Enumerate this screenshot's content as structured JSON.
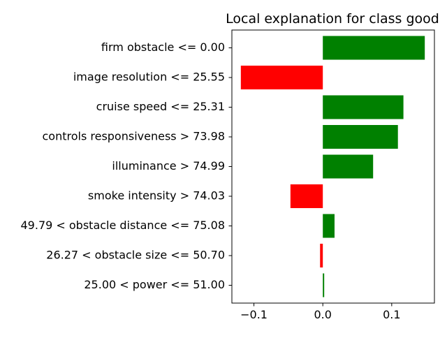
{
  "chart_data": {
    "type": "bar",
    "orientation": "horizontal",
    "title": "Local explanation for class good",
    "xlabel": "",
    "ylabel": "",
    "xlim": [
      -0.132,
      0.162
    ],
    "xticks": [
      -0.1,
      0.0,
      0.1
    ],
    "xtick_labels": [
      "−0.1",
      "0.0",
      "0.1"
    ],
    "grid": false,
    "legend": "none",
    "positive_color": "#008000",
    "negative_color": "#ff0000",
    "categories": [
      "firm obstacle <= 0.00",
      "image resolution <= 25.55",
      "cruise speed <= 25.31",
      "controls responsiveness > 73.98",
      "illuminance > 74.99",
      "smoke intensity > 74.03",
      "49.79 < obstacle distance <= 75.08",
      "26.27 < obstacle size <= 50.70",
      "25.00 < power <= 51.00"
    ],
    "values": [
      0.148,
      -0.119,
      0.117,
      0.109,
      0.073,
      -0.047,
      0.017,
      -0.004,
      0.002
    ]
  }
}
